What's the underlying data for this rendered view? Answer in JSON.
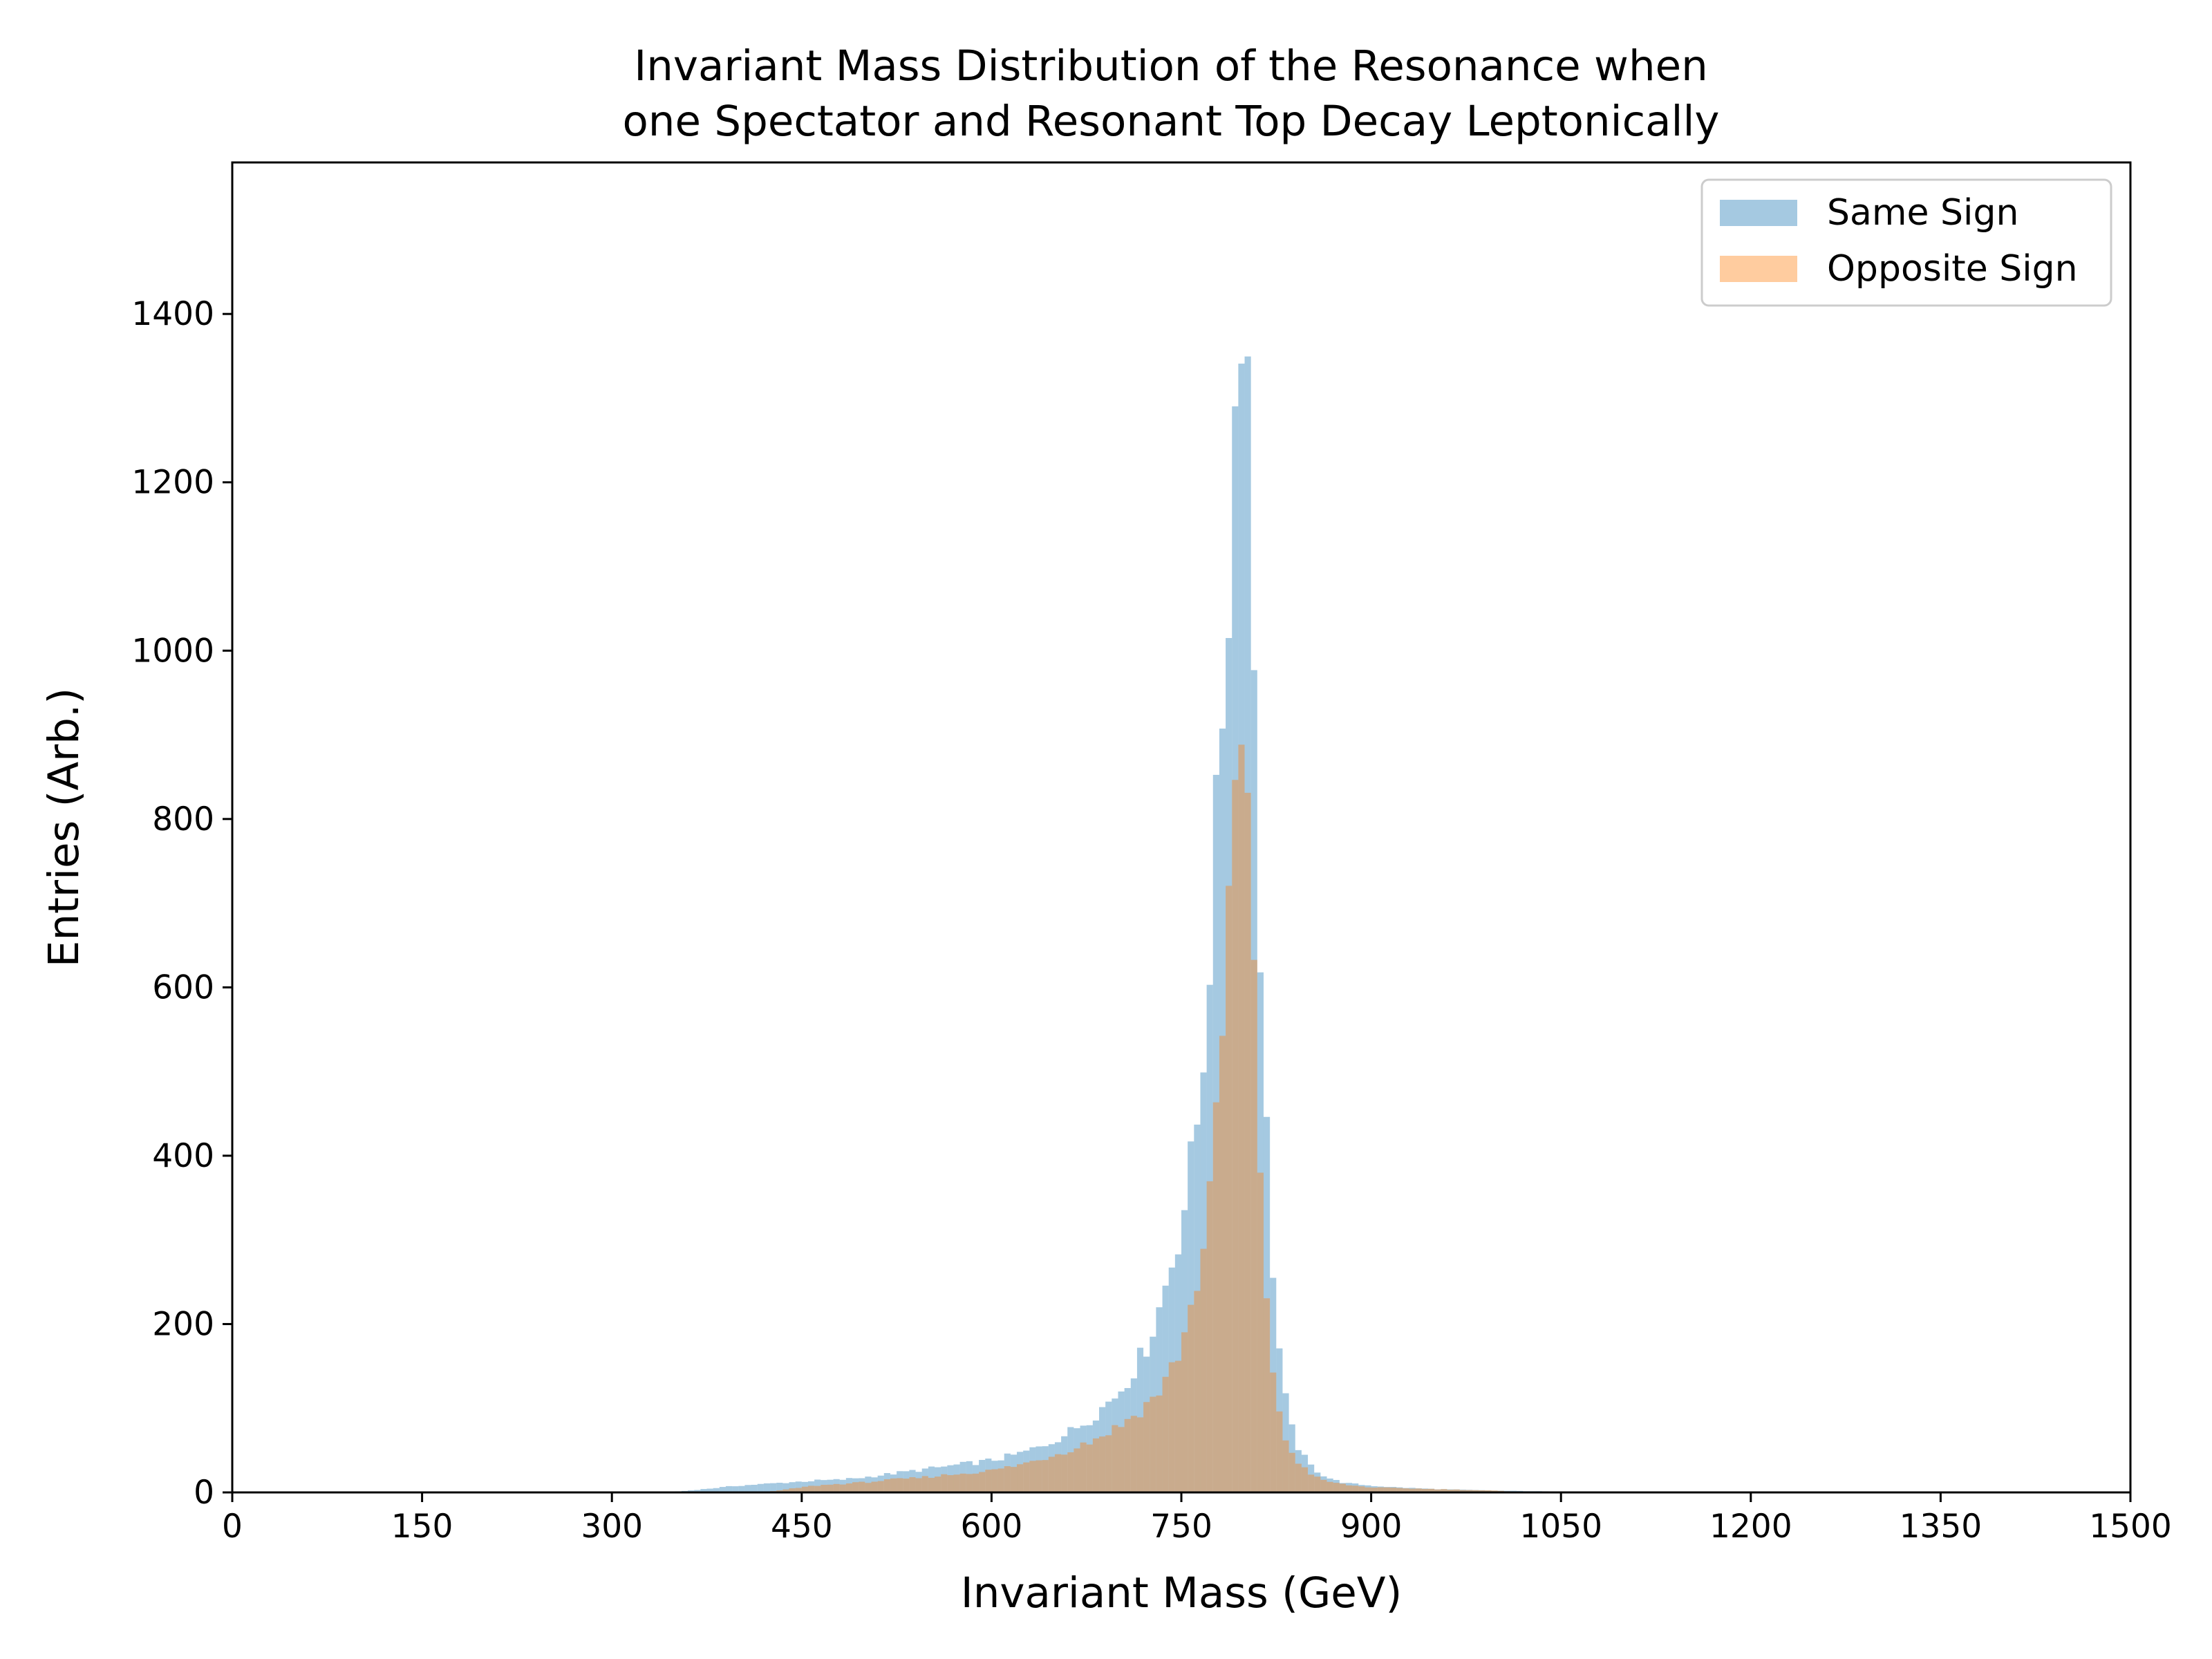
{
  "chart_data": {
    "type": "histogram",
    "title_lines": [
      "Invariant Mass Distribution of the Resonance when",
      "one Spectator and Resonant Top Decay Leptonically"
    ],
    "xlabel": "Invariant Mass (GeV)",
    "ylabel": "Entries (Arb.)",
    "xlim": [
      0,
      1500
    ],
    "ylim": [
      0,
      1580
    ],
    "xticks": [
      0,
      150,
      300,
      450,
      600,
      750,
      900,
      1050,
      1200,
      1350,
      1500
    ],
    "yticks": [
      0,
      200,
      400,
      600,
      800,
      1000,
      1200,
      1400
    ],
    "grid": false,
    "legend_position": "top-right",
    "bin_width": 5,
    "series": [
      {
        "name": "Same Sign",
        "color": "#1f77b4",
        "alpha": 0.4,
        "profile": [
          [
            340,
            0
          ],
          [
            360,
            2
          ],
          [
            380,
            5
          ],
          [
            400,
            8
          ],
          [
            420,
            10
          ],
          [
            440,
            12
          ],
          [
            460,
            14
          ],
          [
            480,
            15
          ],
          [
            500,
            18
          ],
          [
            520,
            22
          ],
          [
            540,
            26
          ],
          [
            560,
            30
          ],
          [
            580,
            34
          ],
          [
            600,
            38
          ],
          [
            620,
            45
          ],
          [
            640,
            55
          ],
          [
            660,
            70
          ],
          [
            680,
            90
          ],
          [
            700,
            118
          ],
          [
            710,
            140
          ],
          [
            720,
            165
          ],
          [
            730,
            205
          ],
          [
            740,
            260
          ],
          [
            750,
            320
          ],
          [
            760,
            410
          ],
          [
            765,
            470
          ],
          [
            770,
            580
          ],
          [
            775,
            700
          ],
          [
            780,
            870
          ],
          [
            785,
            1000
          ],
          [
            790,
            1150
          ],
          [
            795,
            1420
          ],
          [
            800,
            1490
          ],
          [
            805,
            1200
          ],
          [
            810,
            800
          ],
          [
            815,
            520
          ],
          [
            820,
            330
          ],
          [
            825,
            210
          ],
          [
            830,
            130
          ],
          [
            835,
            90
          ],
          [
            840,
            60
          ],
          [
            850,
            35
          ],
          [
            860,
            22
          ],
          [
            870,
            15
          ],
          [
            880,
            11
          ],
          [
            900,
            8
          ],
          [
            920,
            6
          ],
          [
            950,
            4
          ],
          [
            1000,
            2
          ],
          [
            1050,
            1
          ],
          [
            1080,
            0
          ]
        ]
      },
      {
        "name": "Opposite Sign",
        "color": "#ff7f0e",
        "alpha": 0.4,
        "profile": [
          [
            420,
            0
          ],
          [
            440,
            4
          ],
          [
            460,
            8
          ],
          [
            480,
            10
          ],
          [
            500,
            12
          ],
          [
            520,
            15
          ],
          [
            540,
            17
          ],
          [
            560,
            20
          ],
          [
            580,
            23
          ],
          [
            600,
            26
          ],
          [
            620,
            32
          ],
          [
            640,
            40
          ],
          [
            660,
            50
          ],
          [
            680,
            62
          ],
          [
            700,
            78
          ],
          [
            720,
            100
          ],
          [
            735,
            125
          ],
          [
            745,
            155
          ],
          [
            755,
            200
          ],
          [
            765,
            270
          ],
          [
            775,
            380
          ],
          [
            780,
            480
          ],
          [
            785,
            620
          ],
          [
            790,
            780
          ],
          [
            795,
            860
          ],
          [
            800,
            900
          ],
          [
            805,
            700
          ],
          [
            810,
            480
          ],
          [
            815,
            300
          ],
          [
            820,
            180
          ],
          [
            825,
            110
          ],
          [
            830,
            70
          ],
          [
            840,
            40
          ],
          [
            850,
            25
          ],
          [
            860,
            15
          ],
          [
            880,
            9
          ],
          [
            900,
            6
          ],
          [
            950,
            4
          ],
          [
            1000,
            2
          ],
          [
            1020,
            0
          ]
        ]
      }
    ]
  }
}
